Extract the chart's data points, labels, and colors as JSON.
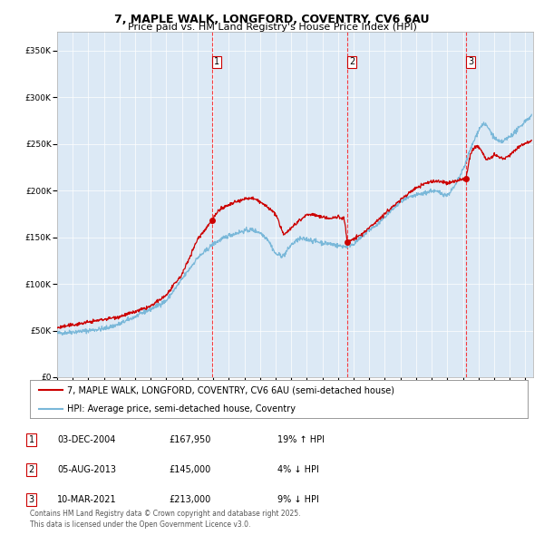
{
  "title": "7, MAPLE WALK, LONGFORD, COVENTRY, CV6 6AU",
  "subtitle": "Price paid vs. HM Land Registry's House Price Index (HPI)",
  "bg_color": "#dce9f5",
  "red_line_label": "7, MAPLE WALK, LONGFORD, COVENTRY, CV6 6AU (semi-detached house)",
  "blue_line_label": "HPI: Average price, semi-detached house, Coventry",
  "sale_markers": [
    {
      "label": "1",
      "date_num": 2004.92,
      "price": 167950
    },
    {
      "label": "2",
      "date_num": 2013.59,
      "price": 145000
    },
    {
      "label": "3",
      "date_num": 2021.19,
      "price": 213000
    }
  ],
  "table_rows": [
    {
      "num": "1",
      "date": "03-DEC-2004",
      "price": "£167,950",
      "hpi": "19% ↑ HPI"
    },
    {
      "num": "2",
      "date": "05-AUG-2013",
      "price": "£145,000",
      "hpi": "4% ↓ HPI"
    },
    {
      "num": "3",
      "date": "10-MAR-2021",
      "price": "£213,000",
      "hpi": "9% ↓ HPI"
    }
  ],
  "footer": "Contains HM Land Registry data © Crown copyright and database right 2025.\nThis data is licensed under the Open Government Licence v3.0.",
  "ylim": [
    0,
    370000
  ],
  "xlim_start": 1995.0,
  "xlim_end": 2025.5,
  "yticks": [
    0,
    50000,
    100000,
    150000,
    200000,
    250000,
    300000,
    350000
  ],
  "ytick_labels": [
    "£0",
    "£50K",
    "£100K",
    "£150K",
    "£200K",
    "£250K",
    "£300K",
    "£350K"
  ],
  "xticks": [
    1995,
    1996,
    1997,
    1998,
    1999,
    2000,
    2001,
    2002,
    2003,
    2004,
    2005,
    2006,
    2007,
    2008,
    2009,
    2010,
    2011,
    2012,
    2013,
    2014,
    2015,
    2016,
    2017,
    2018,
    2019,
    2020,
    2021,
    2022,
    2023,
    2024,
    2025
  ],
  "red_color": "#cc0000",
  "blue_color": "#7ab8d9",
  "grid_color": "white",
  "title_fontsize": 9,
  "subtitle_fontsize": 8,
  "tick_fontsize": 6.5,
  "legend_fontsize": 7,
  "table_fontsize": 7,
  "footer_fontsize": 5.5
}
